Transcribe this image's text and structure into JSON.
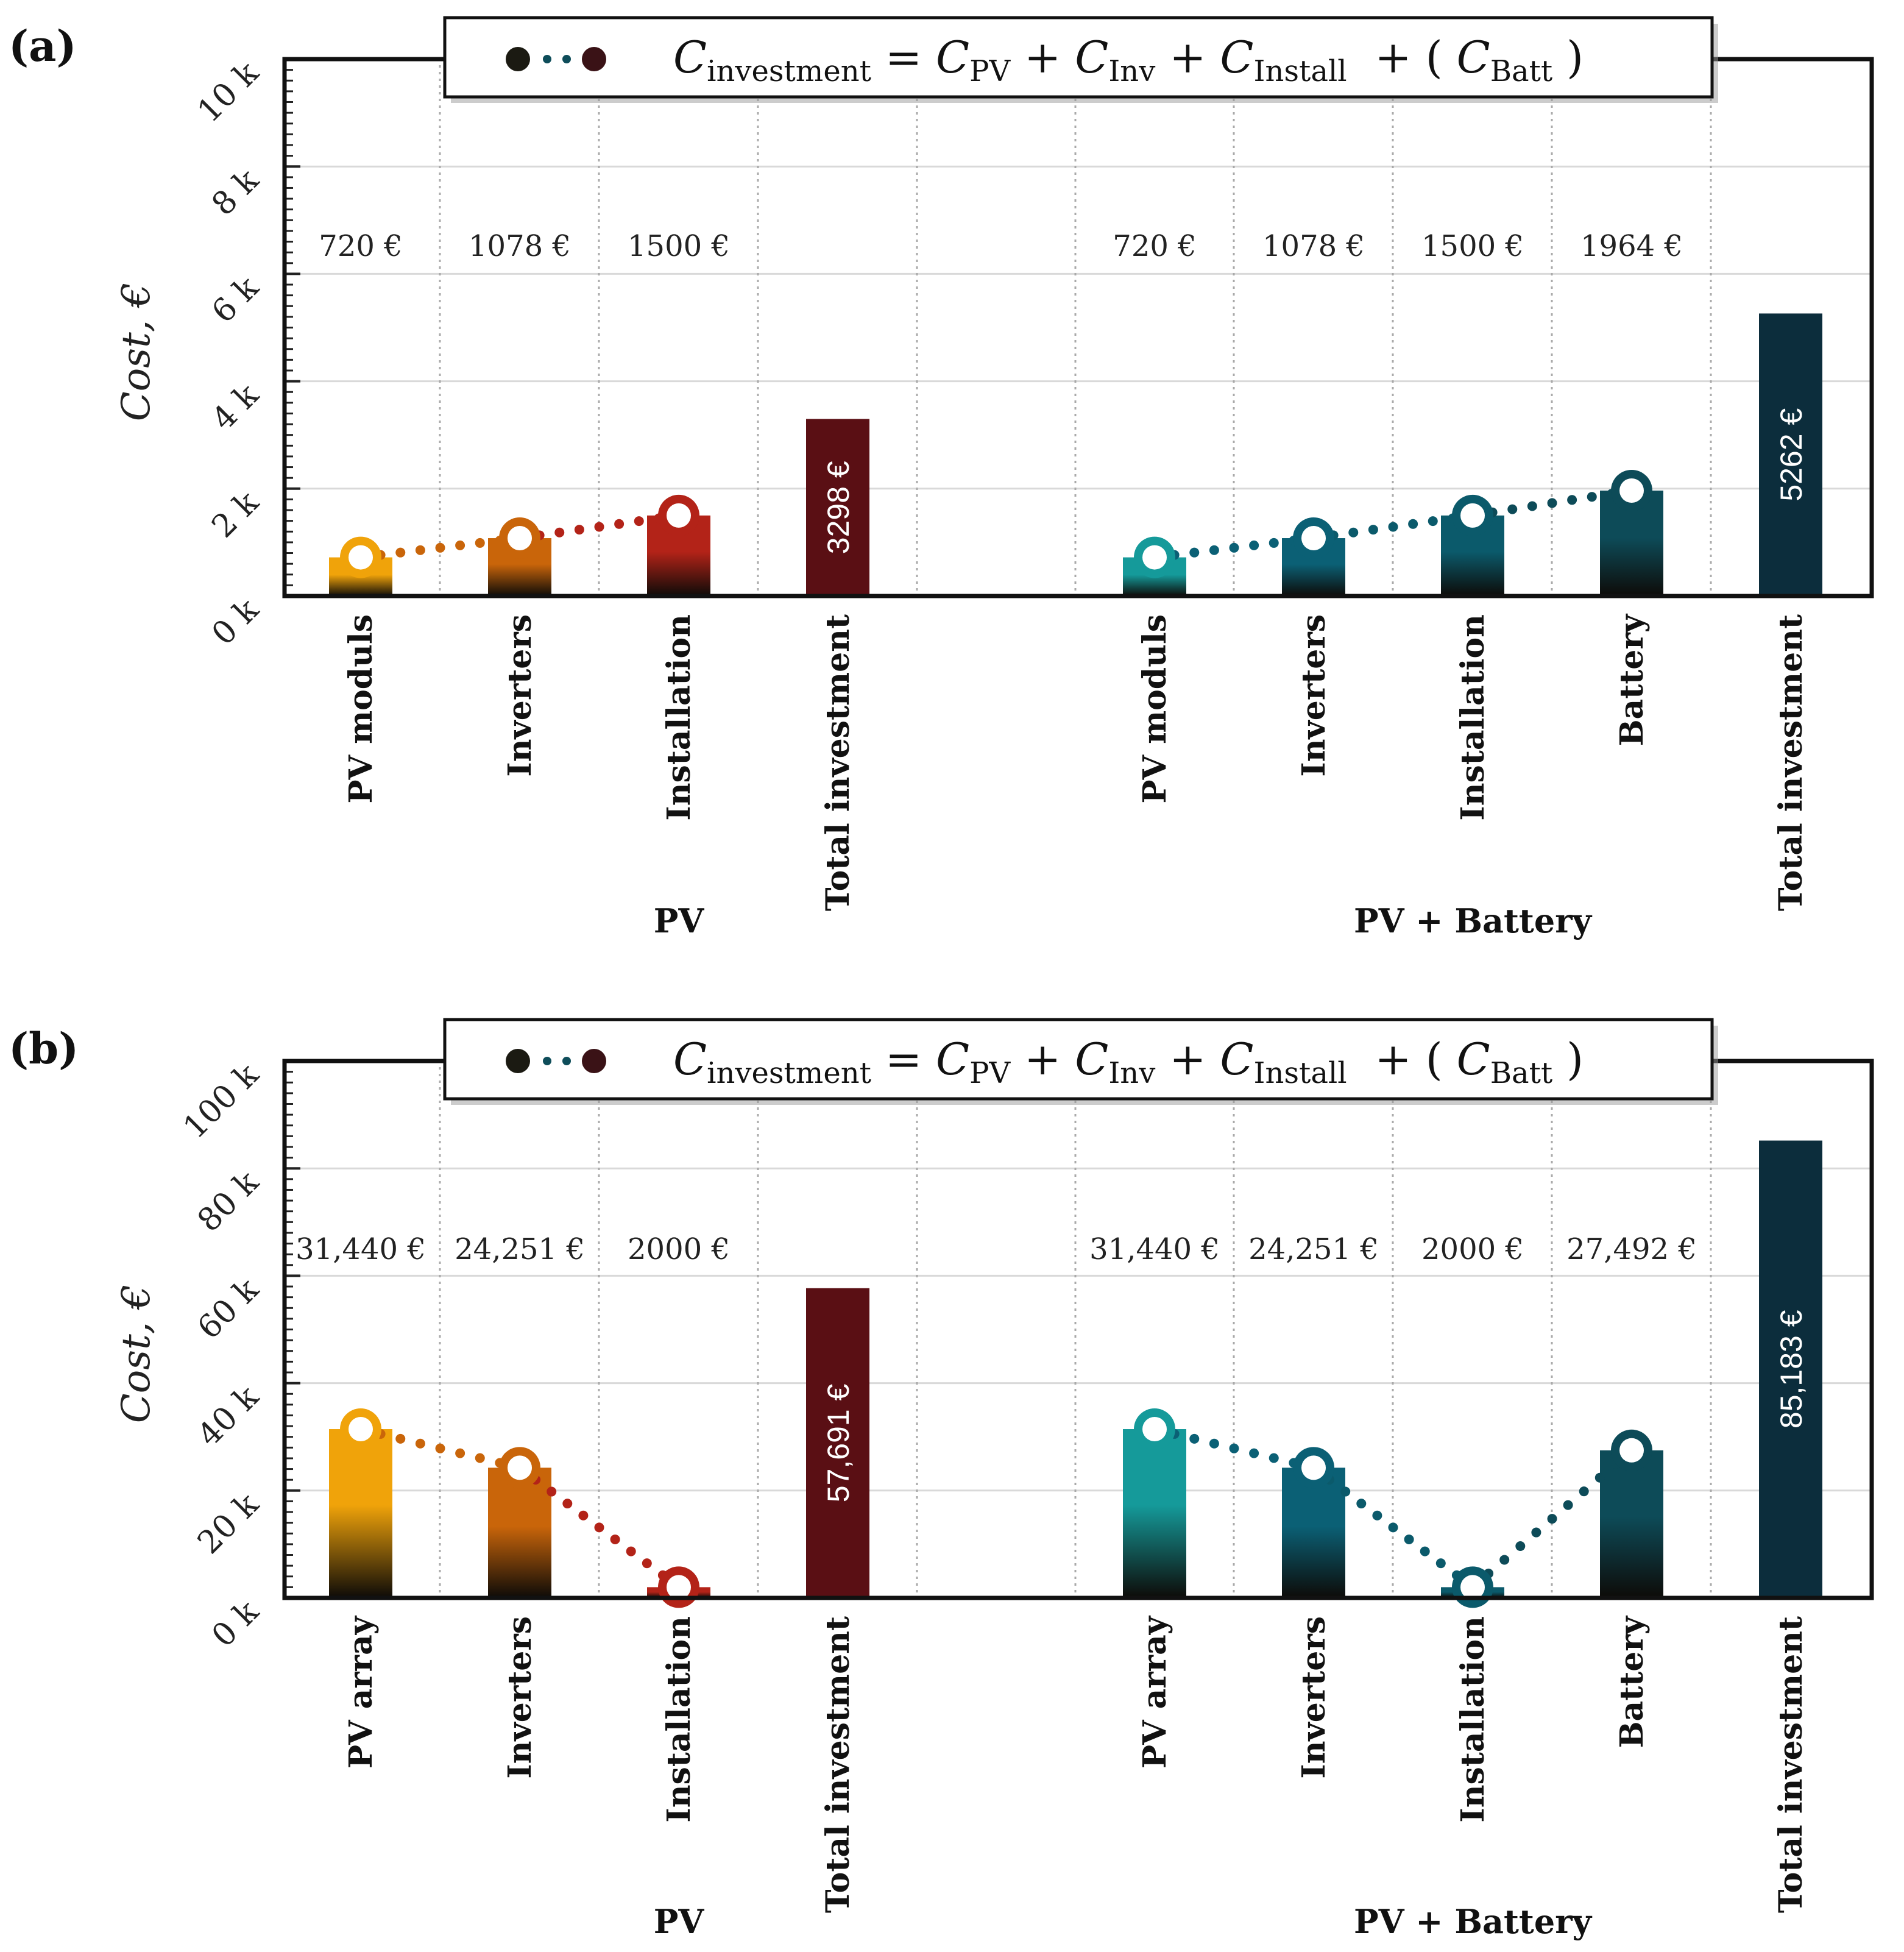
{
  "chart_data": [
    {
      "type": "bar",
      "panel_label": "(a)",
      "ylabel": "Cost, €",
      "ylim": [
        0,
        10000
      ],
      "yticks": [
        0,
        2000,
        4000,
        6000,
        8000,
        10000
      ],
      "ytick_labels": [
        "0 k",
        "2 k",
        "4 k",
        "6 k",
        "8 k",
        "10 k"
      ],
      "grid": true,
      "legend": {
        "position": "top-center",
        "equation": [
          "C",
          "investment",
          " = ",
          "C",
          "PV",
          " + ",
          "C",
          "Inv",
          " + ",
          "C",
          "Install",
          "  + ( ",
          "C",
          "Batt",
          " )"
        ]
      },
      "groups": [
        {
          "name": "PV",
          "categories": [
            "PV moduls",
            "Inverters",
            "Installation",
            "Total investment"
          ],
          "values": [
            720,
            1078,
            1500,
            3298
          ],
          "value_labels": [
            "720 €",
            "1078 €",
            "1500 €",
            "3298 €"
          ],
          "colors": [
            "#f0a30a",
            "#c9650a",
            "#b32318",
            "#5a0f14"
          ]
        },
        {
          "name": "PV + Battery",
          "categories": [
            "PV moduls",
            "Inverters",
            "Installation",
            "Battery",
            "Total investment"
          ],
          "values": [
            720,
            1078,
            1500,
            1964,
            5262
          ],
          "value_labels": [
            "720 €",
            "1078 €",
            "1500 €",
            "1964 €",
            "5262 €"
          ],
          "colors": [
            "#159a9a",
            "#0b6075",
            "#0b5a6b",
            "#0d4b58",
            "#0c2d3c"
          ]
        }
      ]
    },
    {
      "type": "bar",
      "panel_label": "(b)",
      "ylabel": "Cost, €",
      "ylim": [
        0,
        100000
      ],
      "yticks": [
        0,
        20000,
        40000,
        60000,
        80000,
        100000
      ],
      "ytick_labels": [
        "0 k",
        "20 k",
        "40 k",
        "60 k",
        "80 k",
        "100 k"
      ],
      "grid": true,
      "legend": {
        "position": "top-center",
        "equation": [
          "C",
          "investment",
          " = ",
          "C",
          "PV",
          " + ",
          "C",
          "Inv",
          " + ",
          "C",
          "Install",
          "  + ( ",
          "C",
          "Batt",
          " )"
        ]
      },
      "groups": [
        {
          "name": "PV",
          "categories": [
            "PV array",
            "Inverters",
            "Installation",
            "Total investment"
          ],
          "values": [
            31440,
            24251,
            2000,
            57691
          ],
          "value_labels": [
            "31,440 €",
            "24,251 €",
            "2000 €",
            "57,691 €"
          ],
          "colors": [
            "#f0a30a",
            "#c9650a",
            "#b32318",
            "#5a0f14"
          ]
        },
        {
          "name": "PV + Battery",
          "categories": [
            "PV array",
            "Inverters",
            "Installation",
            "Battery",
            "Total investment"
          ],
          "values": [
            31440,
            24251,
            2000,
            27492,
            85183
          ],
          "value_labels": [
            "31,440 €",
            "24,251 €",
            "2000 €",
            "27,492 €",
            "85,183 €"
          ],
          "colors": [
            "#159a9a",
            "#0b6075",
            "#0b5a6b",
            "#0d4b58",
            "#0c2d3c"
          ]
        }
      ]
    }
  ]
}
